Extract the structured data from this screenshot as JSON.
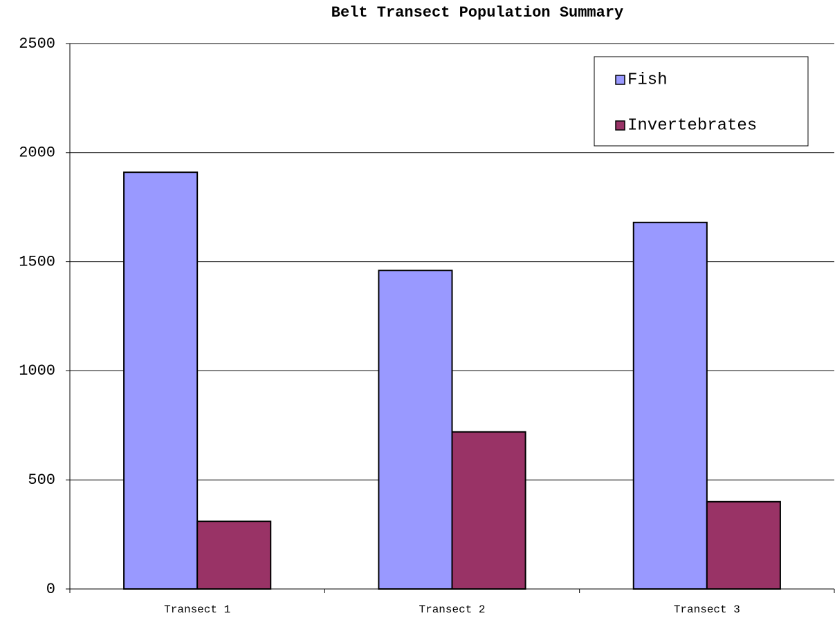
{
  "chart_data": {
    "type": "bar",
    "title": "Belt Transect Population Summary",
    "categories": [
      "Transect 1",
      "Transect 2",
      "Transect 3"
    ],
    "series": [
      {
        "name": "Fish",
        "color": "#9999ff",
        "values": [
          1910,
          1460,
          1680
        ]
      },
      {
        "name": "Invertebrates",
        "color": "#993366",
        "values": [
          310,
          720,
          400
        ]
      }
    ],
    "ylim": [
      0,
      2500
    ],
    "yticks": [
      0,
      500,
      1000,
      1500,
      2000,
      2500
    ],
    "grid": true,
    "legend": "top-right"
  }
}
